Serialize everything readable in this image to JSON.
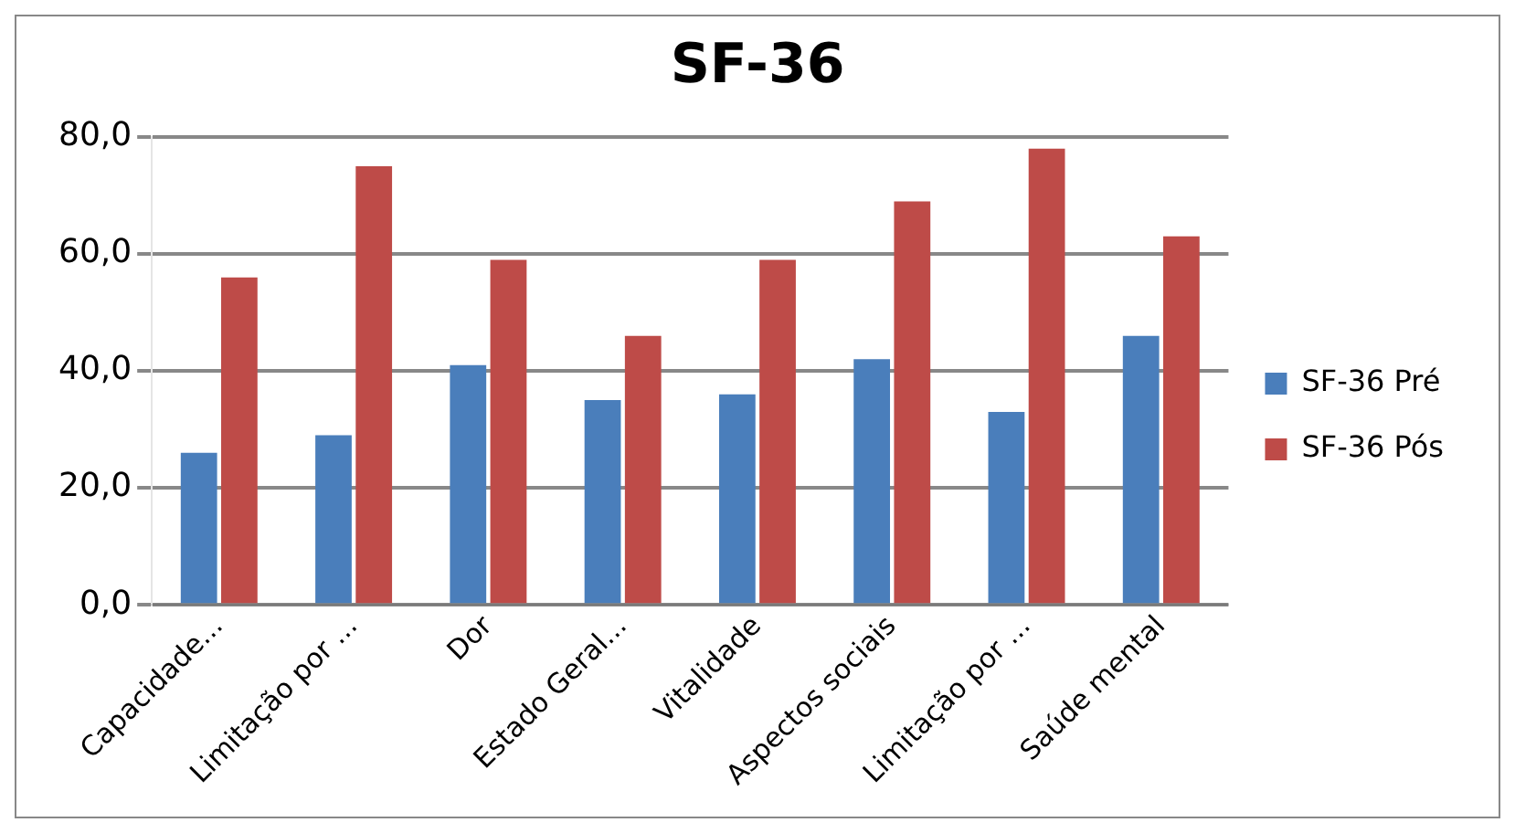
{
  "chart_data": {
    "type": "bar",
    "title": "SF-36",
    "categories": [
      "Capacidade...",
      "Limitação por ...",
      "Dor",
      "Estado Geral...",
      "Vitalidade",
      "Aspectos sociais",
      "Limitação por ...",
      "Saúde mental"
    ],
    "series": [
      {
        "name": "SF-36 Pré",
        "color": "#4a7ebb",
        "values": [
          26,
          29,
          41,
          35,
          36,
          42,
          33,
          46
        ]
      },
      {
        "name": "SF-36 Pós",
        "color": "#be4b48",
        "values": [
          56,
          75,
          59,
          46,
          59,
          69,
          78,
          63
        ]
      }
    ],
    "ylim": [
      0,
      80
    ],
    "yticks": [
      {
        "value": 0,
        "label": "0,0"
      },
      {
        "value": 20,
        "label": "20,0"
      },
      {
        "value": 40,
        "label": "40,0"
      },
      {
        "value": 60,
        "label": "60,0"
      },
      {
        "value": 80,
        "label": "80,0"
      }
    ],
    "grid": "y",
    "legend": "right"
  }
}
